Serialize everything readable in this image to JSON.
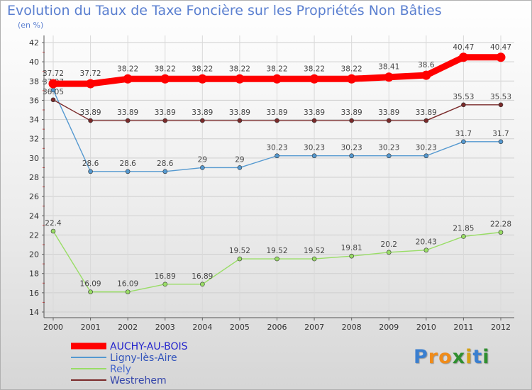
{
  "title": "Evolution du Taux de Taxe Foncière sur les Propriétés Non Bâties",
  "subtitle": "(en %)",
  "logo": {
    "text": "Proxiti",
    "letters": [
      {
        "ch": "P",
        "color": "#3a7fd0"
      },
      {
        "ch": "r",
        "color": "#f08c1a"
      },
      {
        "ch": "o",
        "color": "#f08c1a"
      },
      {
        "ch": "x",
        "color": "#2f8f2f"
      },
      {
        "ch": "i",
        "color": "#d4a017"
      },
      {
        "ch": "t",
        "color": "#3a7fd0"
      },
      {
        "ch": "i",
        "color": "#2f8f2f"
      }
    ]
  },
  "chart_data": {
    "type": "line",
    "x": [
      "2000",
      "2001",
      "2002",
      "2003",
      "2004",
      "2005",
      "2006",
      "2007",
      "2008",
      "2009",
      "2010",
      "2011",
      "2012"
    ],
    "ylim": [
      14,
      42
    ],
    "yticks": [
      "14",
      "16",
      "18",
      "20",
      "22",
      "24",
      "26",
      "28",
      "30",
      "32",
      "34",
      "36",
      "38",
      "40",
      "42"
    ],
    "grid": true,
    "legend_position": "bottom-left",
    "series": [
      {
        "name": "AUCHY-AU-BOIS",
        "color": "#ff0000",
        "labelColor": "#2222cc",
        "thick": true,
        "values": [
          37.72,
          37.72,
          38.22,
          38.22,
          38.22,
          38.22,
          38.22,
          38.22,
          38.22,
          38.41,
          38.6,
          40.47,
          40.47
        ],
        "labels": [
          "37.72",
          "37.72",
          "38.22",
          "38.22",
          "38.22",
          "38.22",
          "38.22",
          "38.22",
          "38.22",
          "38.41",
          "38.6",
          "40.47",
          "40.47"
        ]
      },
      {
        "name": "Ligny-lès-Aire",
        "color": "#5599d0",
        "labelColor": "#3355bb",
        "thick": false,
        "values": [
          37.07,
          28.6,
          28.6,
          28.6,
          29,
          29,
          30.23,
          30.23,
          30.23,
          30.23,
          30.23,
          31.7,
          31.7
        ],
        "labels": [
          "37.07",
          "28.6",
          "28.6",
          "28.6",
          "29",
          "29",
          "30.23",
          "30.23",
          "30.23",
          "30.23",
          "30.23",
          "31.7",
          "31.7"
        ]
      },
      {
        "name": "Rely",
        "color": "#99dd66",
        "labelColor": "#4466cc",
        "thick": false,
        "values": [
          22.4,
          16.09,
          16.09,
          16.89,
          16.89,
          19.52,
          19.52,
          19.52,
          19.81,
          20.2,
          20.43,
          21.85,
          22.28
        ],
        "labels": [
          "22.4",
          "16.09",
          "16.09",
          "16.89",
          "16.89",
          "19.52",
          "19.52",
          "19.52",
          "19.81",
          "20.2",
          "20.43",
          "21.85",
          "22.28"
        ]
      },
      {
        "name": "Westrehem",
        "color": "#7a2a2a",
        "labelColor": "#3344aa",
        "thick": false,
        "values": [
          36.05,
          33.89,
          33.89,
          33.89,
          33.89,
          33.89,
          33.89,
          33.89,
          33.89,
          33.89,
          33.89,
          35.53,
          35.53
        ],
        "labels": [
          "36.05",
          "33.89",
          "33.89",
          "33.89",
          "33.89",
          "33.89",
          "33.89",
          "33.89",
          "33.89",
          "33.89",
          "33.89",
          "35.53",
          "35.53"
        ]
      }
    ]
  }
}
